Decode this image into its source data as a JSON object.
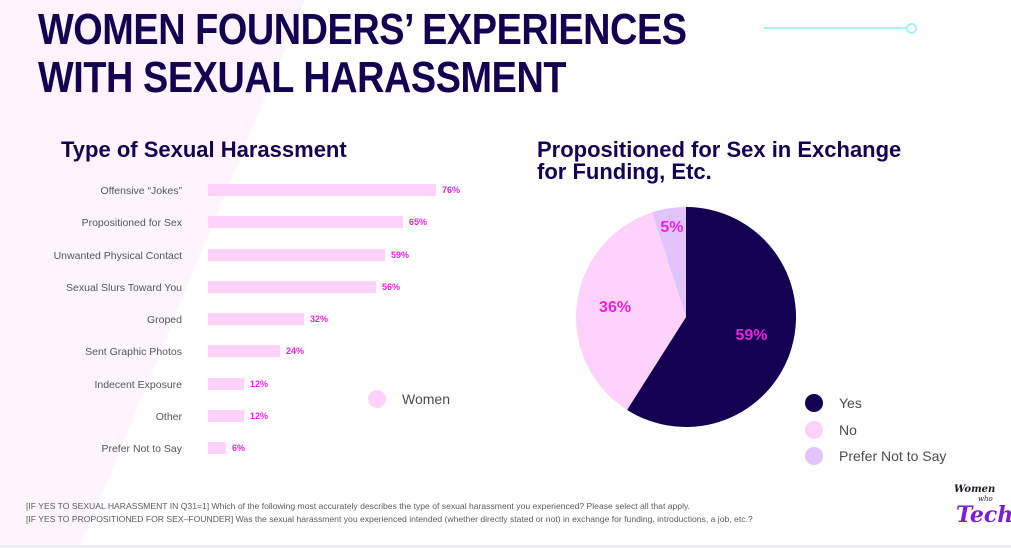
{
  "page": {
    "title_lines": [
      "WOMEN FOUNDERS’ EXPERIENCES",
      "WITH SEXUAL HARASSMENT"
    ],
    "footnotes": [
      "[IF YES TO SEXUAL HARASSMENT IN Q31=1] Which of the following most accurately describes the type of sexual harassment you experienced? Please select all that apply.",
      "[IF YES TO PROPOSITIONED FOR SEX–FOUNDER] Was the sexual harassment you experienced intended (whether directly stated or not) in exchange for funding, introductions, a job, etc.?"
    ],
    "logo": {
      "line1": "Women",
      "line2": "who",
      "line3": "Tech"
    },
    "colors": {
      "navy": "#140050",
      "bar_pink": "#ffd2fb",
      "value_magenta": "#ee22e0",
      "lavender": "#e0c4fb",
      "accent_cyan": "#a6f2f5"
    }
  },
  "chart_data": [
    {
      "type": "bar",
      "orientation": "horizontal",
      "title": "Type of Sexual Harassment",
      "categories": [
        "Offensive “Jokes”",
        "Propositioned for Sex",
        "Unwanted Physical Contact",
        "Sexual Slurs Toward You",
        "Groped",
        "Sent Graphic Photos",
        "Indecent Exposure",
        "Other",
        "Prefer Not to Say"
      ],
      "series": [
        {
          "name": "Women",
          "values": [
            76,
            65,
            59,
            56,
            32,
            24,
            12,
            12,
            6
          ],
          "color": "#ffd2fb"
        }
      ],
      "value_labels": [
        "76%",
        "65%",
        "59%",
        "56%",
        "32%",
        "24%",
        "12%",
        "12%",
        "6%"
      ],
      "xlim": [
        0,
        100
      ],
      "unit": "%",
      "grid": false,
      "legend": {
        "position": "right",
        "entries": [
          "Women"
        ]
      }
    },
    {
      "type": "pie",
      "title": "Propositioned for Sex in Exchange for Funding, Etc.",
      "slices": [
        {
          "label": "Yes",
          "value": 59,
          "display": "59%",
          "color": "#140050"
        },
        {
          "label": "No",
          "value": 36,
          "display": "36%",
          "color": "#ffd2fb"
        },
        {
          "label": "Prefer Not to Say",
          "value": 5,
          "display": "5%",
          "color": "#e0c4fb"
        }
      ],
      "unit": "%",
      "start": "top",
      "direction": "clockwise",
      "legend": {
        "position": "bottom-right",
        "entries": [
          "Yes",
          "No",
          "Prefer Not to Say"
        ]
      }
    }
  ]
}
